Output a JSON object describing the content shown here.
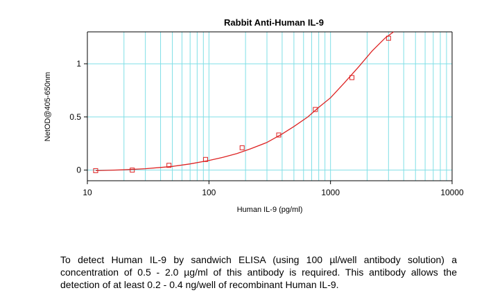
{
  "chart_data": {
    "type": "line",
    "title": "Rabbit Anti-Human IL-9",
    "xlabel": "Human IL-9 (pg/ml)",
    "ylabel": "NetOD@405-650nm",
    "xscale": "log",
    "xlim": [
      10,
      10000
    ],
    "ylim": [
      -0.1,
      1.3
    ],
    "x_ticks": [
      10,
      100,
      1000,
      10000
    ],
    "x_tick_labels": [
      "10",
      "100",
      "1000",
      "10000"
    ],
    "y_ticks": [
      0,
      0.5,
      1
    ],
    "y_tick_labels": [
      "0",
      "0.5",
      "1"
    ],
    "grid": true,
    "legend": "none",
    "colors": {
      "curve": "#dd2222",
      "grid": "#7fdfe6",
      "axis": "#000000"
    },
    "series": [
      {
        "name": "Standard points",
        "marker": "square",
        "x": [
          11.7,
          23.4,
          46.9,
          93.8,
          187.5,
          375,
          750,
          1500,
          3000
        ],
        "y": [
          -0.005,
          0.0,
          0.045,
          0.1,
          0.21,
          0.33,
          0.57,
          0.87,
          1.24
        ]
      }
    ],
    "fit": {
      "name": "Fitted curve",
      "x": [
        11.7,
        15,
        20,
        30,
        40,
        50,
        70,
        100,
        130,
        170,
        220,
        300,
        400,
        500,
        650,
        800,
        1000,
        1300,
        1700,
        2200,
        2800,
        3300
      ],
      "y": [
        -0.005,
        -0.002,
        0.003,
        0.013,
        0.025,
        0.035,
        0.058,
        0.09,
        0.12,
        0.155,
        0.2,
        0.26,
        0.34,
        0.41,
        0.5,
        0.59,
        0.68,
        0.82,
        0.97,
        1.12,
        1.24,
        1.3
      ]
    }
  },
  "caption": {
    "text": "To detect Human IL-9 by sandwich ELISA (using 100 µl/well antibody solution) a concentration of 0.5 - 2.0 µg/ml of this antibody is required. This antibody allows the detection of at least 0.2 - 0.4 ng/well of recombinant Human IL-9."
  }
}
